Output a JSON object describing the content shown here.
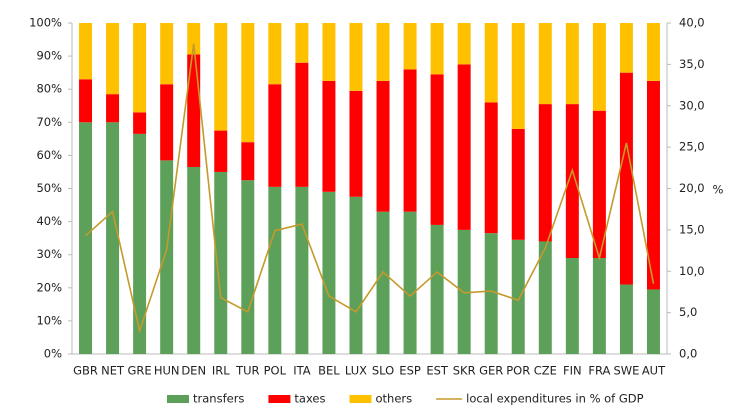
{
  "chart_data": {
    "type": "stacked_bar_line",
    "categories": [
      "GBR",
      "NET",
      "GRE",
      "HUN",
      "DEN",
      "IRL",
      "TUR",
      "POL",
      "ITA",
      "BEL",
      "LUX",
      "SLO",
      "ESP",
      "EST",
      "SKR",
      "GER",
      "POR",
      "CZE",
      "FIN",
      "FRA",
      "SWE",
      "AUT"
    ],
    "series": [
      {
        "name": "transfers",
        "color": "#5da05a",
        "values": [
          70,
          70,
          66.5,
          58.5,
          56.5,
          55,
          52.5,
          50.5,
          50.5,
          49,
          47.5,
          43,
          43,
          39,
          37.5,
          36.5,
          34.5,
          34,
          29,
          29,
          21,
          19.5
        ]
      },
      {
        "name": "taxes",
        "color": "#ff0000",
        "values": [
          13,
          8.5,
          6.5,
          23,
          34,
          12.5,
          11.5,
          31,
          37.5,
          33.5,
          32,
          39.5,
          43,
          45.5,
          50,
          39.5,
          33.5,
          41.5,
          46.5,
          44.5,
          64,
          63
        ]
      },
      {
        "name": "others",
        "color": "#ffc000",
        "values": [
          17,
          21.5,
          27,
          18.5,
          9.5,
          32.5,
          36,
          18.5,
          12,
          17.5,
          20.5,
          17.5,
          14,
          15.5,
          12.5,
          24,
          32,
          24.5,
          24.5,
          26.5,
          15,
          17.5
        ]
      },
      {
        "name": "local expenditures in % of GDP",
        "color": "#c49a2c",
        "axis": "y2",
        "values": [
          14.3,
          17.2,
          2.8,
          12.6,
          37.5,
          6.8,
          5.1,
          14.9,
          15.7,
          7.0,
          5.1,
          9.9,
          7.0,
          9.9,
          7.4,
          7.6,
          6.5,
          12.8,
          22.2,
          11.6,
          25.5,
          8.5
        ]
      }
    ],
    "ylim": [
      0,
      100
    ],
    "yticks": [
      {
        "value": 0,
        "label": "0%"
      },
      {
        "value": 10,
        "label": "10%"
      },
      {
        "value": 20,
        "label": "20%"
      },
      {
        "value": 30,
        "label": "30%"
      },
      {
        "value": 40,
        "label": "40%"
      },
      {
        "value": 50,
        "label": "50%"
      },
      {
        "value": 60,
        "label": "60%"
      },
      {
        "value": 70,
        "label": "70%"
      },
      {
        "value": 80,
        "label": "80%"
      },
      {
        "value": 90,
        "label": "90%"
      },
      {
        "value": 100,
        "label": "100%"
      }
    ],
    "y2lim": [
      0,
      40
    ],
    "y2ticks": [
      {
        "value": 0,
        "label": "0,0"
      },
      {
        "value": 5,
        "label": "5,0"
      },
      {
        "value": 10,
        "label": "10,0"
      },
      {
        "value": 15,
        "label": "15,0"
      },
      {
        "value": 20,
        "label": "20,0"
      },
      {
        "value": 25,
        "label": "25,0"
      },
      {
        "value": 30,
        "label": "30,0"
      },
      {
        "value": 35,
        "label": "35,0"
      },
      {
        "value": 40,
        "label": "40,0"
      }
    ],
    "y2label": "%"
  }
}
